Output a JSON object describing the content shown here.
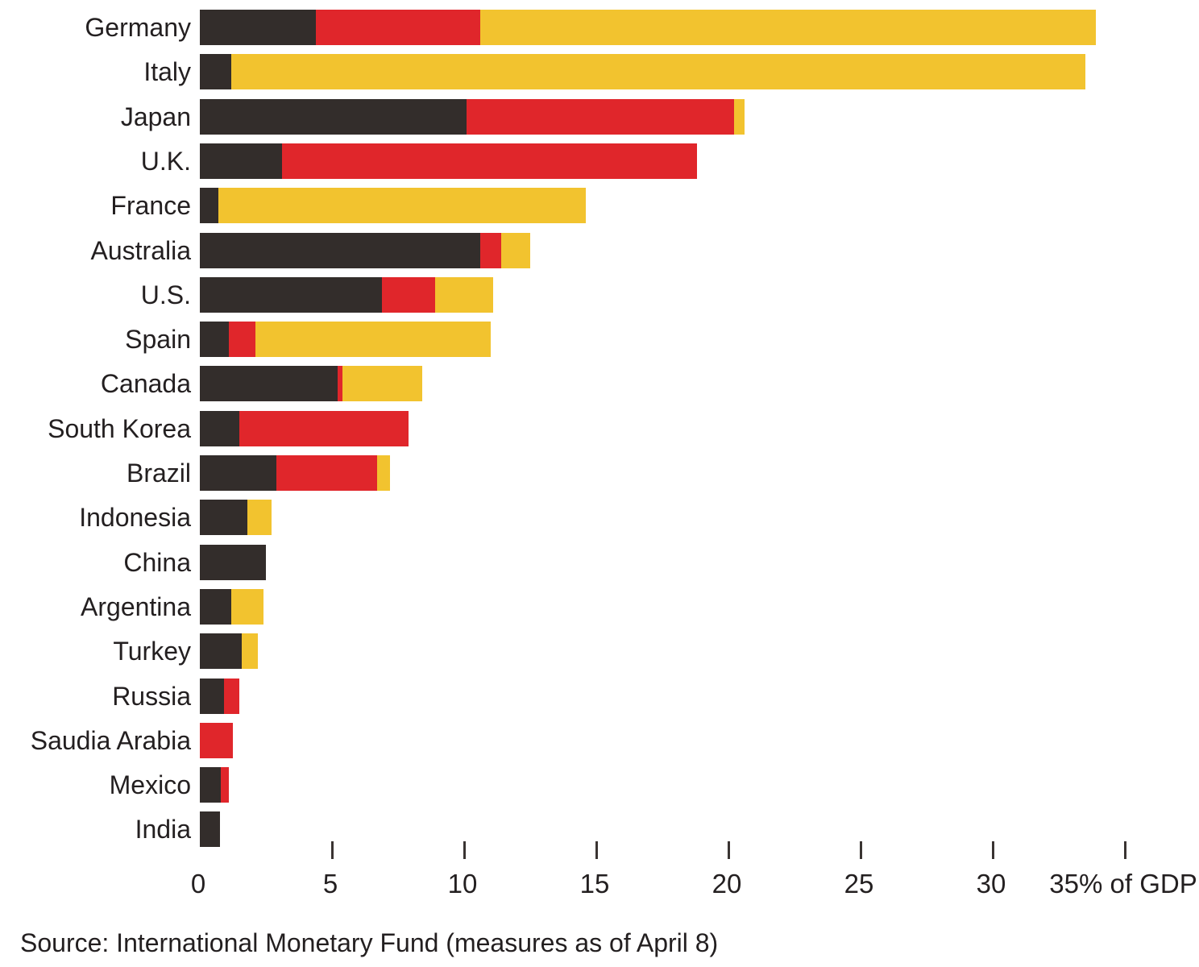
{
  "chart_data": {
    "type": "bar",
    "orientation": "horizontal",
    "stacked": true,
    "title": "",
    "xlabel": "% of GDP",
    "ylabel": "",
    "xlim": [
      0,
      37.8
    ],
    "grid": false,
    "legend": "none",
    "categories": [
      "Germany",
      "Italy",
      "Japan",
      "U.K.",
      "France",
      "Australia",
      "U.S.",
      "Spain",
      "Canada",
      "South Korea",
      "Brazil",
      "Indonesia",
      "China",
      "Argentina",
      "Turkey",
      "Russia",
      "Saudia Arabia",
      "Mexico",
      "India"
    ],
    "series": [
      {
        "name": "black-segment",
        "color": "#332d2b",
        "values": [
          4.4,
          1.2,
          10.1,
          3.1,
          0.7,
          10.6,
          6.9,
          1.1,
          5.2,
          1.5,
          2.9,
          1.8,
          2.5,
          1.2,
          1.6,
          0.9,
          0,
          0.8,
          0.75
        ]
      },
      {
        "name": "red-segment",
        "color": "#e0262b",
        "values": [
          6.2,
          0,
          10.1,
          15.7,
          0,
          0.8,
          2.0,
          1.0,
          0.2,
          6.4,
          3.8,
          0,
          0,
          0,
          0,
          0.6,
          1.25,
          0.3,
          0
        ]
      },
      {
        "name": "yellow-segment",
        "color": "#f2c32f",
        "values": [
          23.3,
          32.3,
          0.4,
          0,
          13.9,
          1.1,
          2.2,
          8.9,
          3.0,
          0,
          0.5,
          0.9,
          0,
          1.2,
          0.6,
          0,
          0,
          0,
          0
        ]
      }
    ],
    "x_axis": {
      "ticks": [
        {
          "value": 0,
          "label": "0",
          "tick_mark": false
        },
        {
          "value": 5,
          "label": "5",
          "tick_mark": true
        },
        {
          "value": 10,
          "label": "10",
          "tick_mark": true
        },
        {
          "value": 15,
          "label": "15",
          "tick_mark": true
        },
        {
          "value": 20,
          "label": "20",
          "tick_mark": true
        },
        {
          "value": 25,
          "label": "25",
          "tick_mark": true
        },
        {
          "value": 30,
          "label": "30",
          "tick_mark": true
        },
        {
          "value": 35,
          "label": "35% of GDP",
          "tick_mark": true
        }
      ]
    }
  },
  "source_note": "Source: International Monetary Fund (measures as of April 8)"
}
